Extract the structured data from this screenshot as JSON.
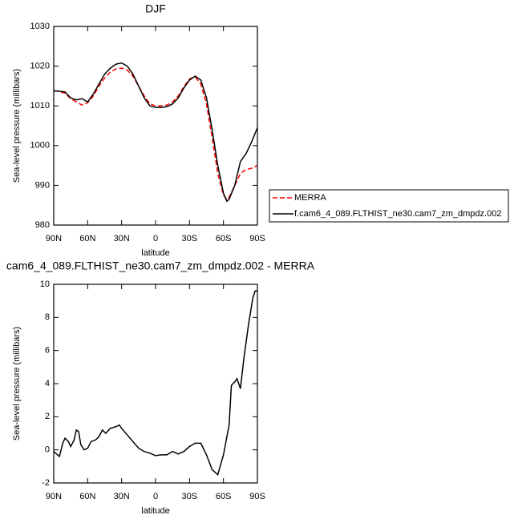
{
  "chart_data": [
    {
      "type": "line",
      "title": "DJF",
      "xlabel": "latitude",
      "ylabel": "Sea-level pressure (millibars)",
      "x": [
        90,
        85,
        80,
        75,
        70,
        65,
        60,
        55,
        50,
        45,
        40,
        35,
        30,
        25,
        20,
        15,
        10,
        5,
        0,
        -5,
        -10,
        -15,
        -20,
        -25,
        -30,
        -35,
        -40,
        -45,
        -50,
        -55,
        -60,
        -63,
        -65,
        -70,
        -75,
        -80,
        -85,
        -90
      ],
      "xlim": [
        90,
        -90
      ],
      "xticks": [
        {
          "value": 90,
          "label": "90N"
        },
        {
          "value": 60,
          "label": "60N"
        },
        {
          "value": 30,
          "label": "30N"
        },
        0,
        {
          "value": -30,
          "label": "30S"
        },
        {
          "value": -60,
          "label": "60S"
        },
        {
          "value": -90,
          "label": "90S"
        }
      ],
      "ylim": [
        980,
        1030
      ],
      "yticks": [
        980,
        990,
        1000,
        1010,
        1020,
        1030
      ],
      "legend": "right",
      "series": [
        {
          "name": "MERRA",
          "color": "#ff0000",
          "dashed": true,
          "values": [
            1013.8,
            1013.6,
            1013.2,
            1011.8,
            1011,
            1010.2,
            1010.8,
            1012.5,
            1015,
            1017,
            1018.5,
            1019.3,
            1019.5,
            1019,
            1017.5,
            1015,
            1012.5,
            1010.5,
            1010,
            1010,
            1010.2,
            1011,
            1012.5,
            1014.8,
            1016.8,
            1017.3,
            1015.5,
            1010.5,
            1002,
            993,
            987.5,
            986.5,
            987,
            990,
            993,
            994,
            994.3,
            995
          ]
        },
        {
          "name": "f.cam6_4_089.FLTHIST_ne30.cam7_zm_dmpdz.002",
          "color": "#000000",
          "dashed": false,
          "values": [
            1013.8,
            1013.7,
            1013.5,
            1012,
            1011.5,
            1011.8,
            1011,
            1013,
            1015.5,
            1018,
            1019.5,
            1020.5,
            1020.8,
            1020,
            1018,
            1015,
            1012,
            1010,
            1009.6,
            1009.6,
            1009.8,
            1010.5,
            1012,
            1014.5,
            1016.5,
            1017.5,
            1016.5,
            1012,
            1004,
            995,
            988,
            986,
            986.5,
            990,
            996,
            998,
            1001,
            1004.5
          ]
        }
      ]
    },
    {
      "type": "line",
      "title": "cam6_4_089.FLTHIST_ne30.cam7_zm_dmpdz.002 - MERRA",
      "xlabel": "latitude",
      "ylabel": "Sea-level pressure (millibars)",
      "x": [
        90,
        85,
        82,
        80,
        77,
        75,
        72,
        70,
        68,
        66,
        63,
        60,
        57,
        53,
        50,
        47,
        44,
        40,
        35,
        32,
        30,
        25,
        20,
        15,
        10,
        5,
        0,
        -5,
        -10,
        -15,
        -20,
        -25,
        -30,
        -35,
        -40,
        -45,
        -50,
        -55,
        -60,
        -65,
        -67,
        -70,
        -72,
        -75,
        -78,
        -82,
        -86,
        -88,
        -90
      ],
      "xlim": [
        90,
        -90
      ],
      "xticks": [
        {
          "value": 90,
          "label": "90N"
        },
        {
          "value": 60,
          "label": "60N"
        },
        {
          "value": 30,
          "label": "30N"
        },
        0,
        {
          "value": -30,
          "label": "30S"
        },
        {
          "value": -60,
          "label": "60S"
        },
        {
          "value": -90,
          "label": "90S"
        }
      ],
      "ylim": [
        -2,
        10
      ],
      "yticks": [
        -2,
        0,
        2,
        4,
        6,
        8,
        10
      ],
      "series": [
        {
          "color": "#000000",
          "dashed": false,
          "values": [
            -0.1,
            -0.4,
            0.4,
            0.7,
            0.5,
            0.2,
            0.6,
            1.2,
            1.1,
            0.3,
            0,
            0.1,
            0.5,
            0.6,
            0.8,
            1.2,
            1,
            1.3,
            1.4,
            1.5,
            1.3,
            0.9,
            0.5,
            0.1,
            -0.1,
            -0.2,
            -0.35,
            -0.3,
            -0.3,
            -0.1,
            -0.25,
            -0.1,
            0.2,
            0.4,
            0.4,
            -0.3,
            -1.2,
            -1.5,
            -0.3,
            1.5,
            3.9,
            4.1,
            4.3,
            3.7,
            5.5,
            7.5,
            9.2,
            9.6,
            9.6
          ]
        }
      ]
    }
  ]
}
